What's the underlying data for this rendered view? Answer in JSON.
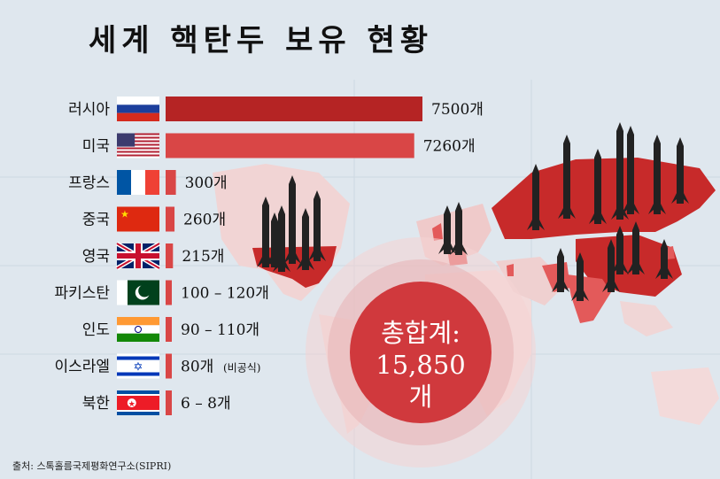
{
  "title": "세계 핵탄두 보유 현황",
  "source": "출처: 스톡홀름국제평화연구소(SIPRI)",
  "total": {
    "label": "총합계:",
    "value": "15,850",
    "unit": "개"
  },
  "colors": {
    "bar_russia": "#b52424",
    "bar_other": "#d94646",
    "map_highlight": "#c72a2a",
    "map_land": "#f3d9d9",
    "background": "#dfe7ee",
    "total_circle": "#d0393d"
  },
  "chart_data": {
    "type": "bar",
    "orientation": "horizontal",
    "categories": [
      "러시아",
      "미국",
      "프랑스",
      "중국",
      "영국",
      "파키스탄",
      "인도",
      "이스라엘",
      "북한"
    ],
    "flags": [
      "russia-flag-icon",
      "usa-flag-icon",
      "france-flag-icon",
      "china-flag-icon",
      "uk-flag-icon",
      "pakistan-flag-icon",
      "india-flag-icon",
      "israel-flag-icon",
      "north-korea-flag-icon"
    ],
    "values": [
      7500,
      7260,
      300,
      260,
      215,
      110,
      100,
      80,
      7
    ],
    "value_labels": [
      "7500개",
      "7260개",
      "300개",
      "260개",
      "215개",
      "100 – 120개",
      "90 – 110개",
      "80개",
      "6 – 8개"
    ],
    "notes": [
      "",
      "",
      "",
      "",
      "",
      "",
      "",
      "(비공식)",
      ""
    ],
    "xlim": [
      0,
      7500
    ]
  }
}
